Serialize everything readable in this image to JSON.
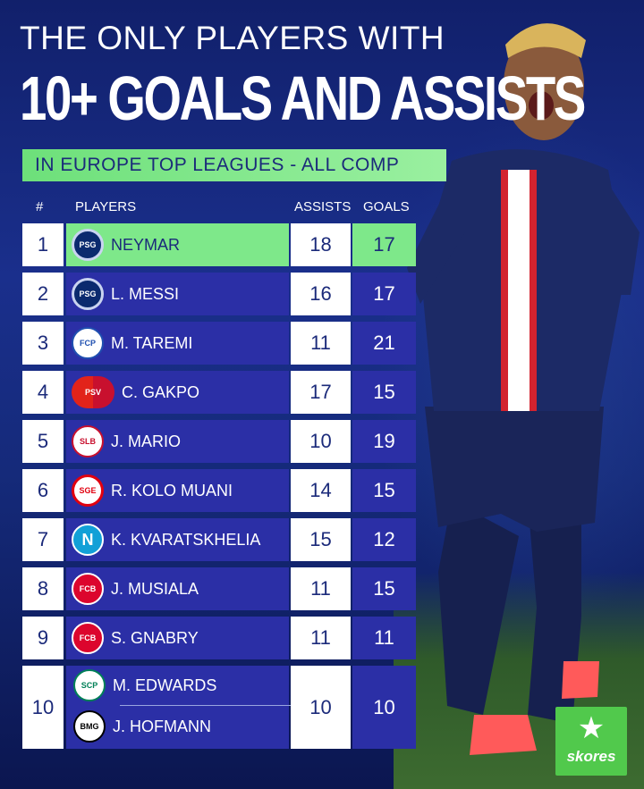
{
  "title": {
    "line1": "THE ONLY PLAYERS WITH",
    "line2": "10+ GOALS AND ASSISTS"
  },
  "banner": "IN EUROPE TOP LEAGUES - ALL COMP",
  "headers": {
    "rank": "#",
    "players": "PLAYERS",
    "assists": "ASSISTS",
    "goals": "GOALS"
  },
  "rows": [
    {
      "rank": "1",
      "player": "NEYMAR",
      "club_icon": "psg-crest-icon",
      "assists": "18",
      "goals": "17"
    },
    {
      "rank": "2",
      "player": "L. MESSI",
      "club_icon": "psg-crest-icon",
      "assists": "16",
      "goals": "17"
    },
    {
      "rank": "3",
      "player": "M. TAREMI",
      "club_icon": "porto-crest-icon",
      "assists": "11",
      "goals": "21"
    },
    {
      "rank": "4",
      "player": "C. GAKPO",
      "club_icon": "psv-liverpool-crest-icon",
      "assists": "17",
      "goals": "15"
    },
    {
      "rank": "5",
      "player": "J. MARIO",
      "club_icon": "benfica-crest-icon",
      "assists": "10",
      "goals": "19"
    },
    {
      "rank": "6",
      "player": "R. KOLO MUANI",
      "club_icon": "frankfurt-crest-icon",
      "assists": "14",
      "goals": "15"
    },
    {
      "rank": "7",
      "player": "K. KVARATSKHELIA",
      "club_icon": "napoli-crest-icon",
      "assists": "15",
      "goals": "12"
    },
    {
      "rank": "8",
      "player": "J. MUSIALA",
      "club_icon": "bayern-crest-icon",
      "assists": "11",
      "goals": "15"
    },
    {
      "rank": "9",
      "player": "S. GNABRY",
      "club_icon": "bayern-crest-icon",
      "assists": "11",
      "goals": "11"
    },
    {
      "rank": "10",
      "player_a": "M. EDWARDS",
      "club_icon_a": "sporting-crest-icon",
      "player_b": "J. HOFMANN",
      "club_icon_b": "gladbach-crest-icon",
      "assists": "10",
      "goals": "10"
    }
  ],
  "brand": {
    "name": "skores",
    "icon": "star-icon",
    "color": "#51c94c"
  },
  "colors": {
    "highlight": "#7ee88a",
    "row_blue": "#2b2fa6",
    "background": "#11206b"
  }
}
